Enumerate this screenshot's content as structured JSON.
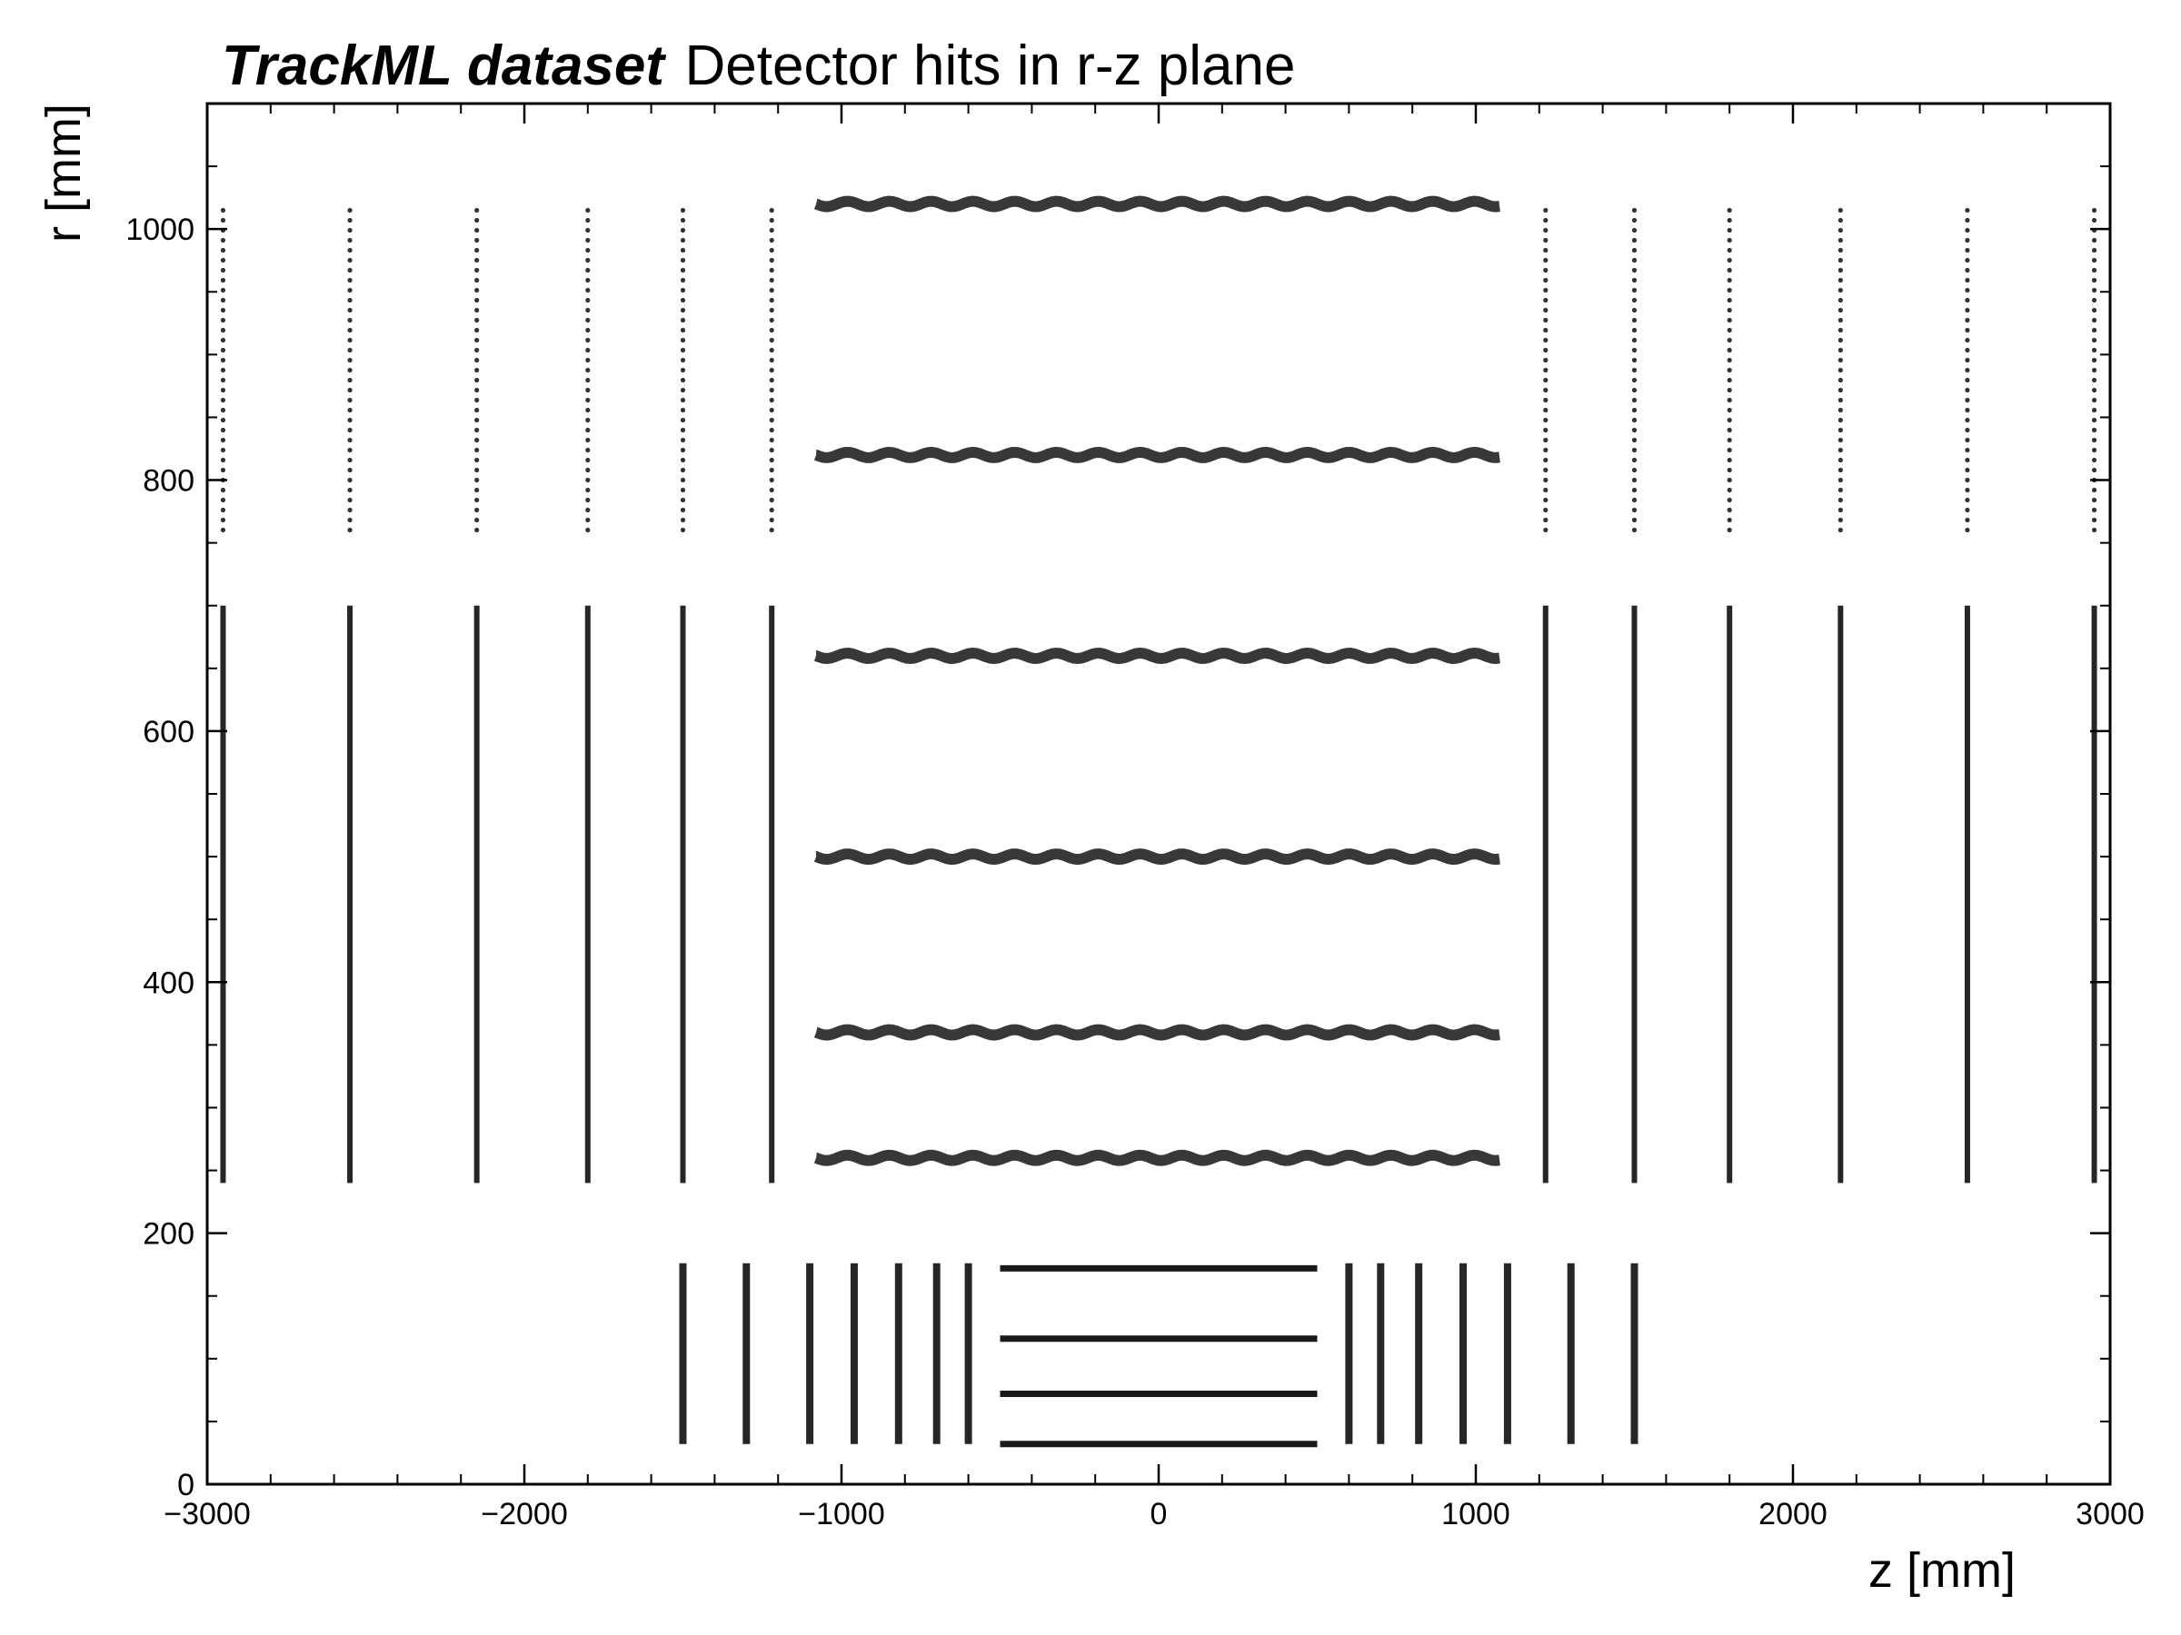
{
  "chart_data": {
    "type": "scatter",
    "title": "TrackML dataset",
    "subtitle": "Detector hits in r-z plane",
    "xlabel": "z [mm]",
    "ylabel": "r [mm]",
    "xlim": [
      -3000,
      3000
    ],
    "ylim": [
      0,
      1100
    ],
    "x_ticks": [
      -3000,
      -2000,
      -1000,
      0,
      1000,
      2000,
      3000
    ],
    "x_tick_labels": [
      "−3000",
      "−2000",
      "−1000",
      "0",
      "1000",
      "2000",
      "3000"
    ],
    "y_ticks": [
      0,
      200,
      400,
      600,
      800,
      1000
    ],
    "y_tick_labels": [
      "0",
      "200",
      "400",
      "600",
      "800",
      "1000"
    ],
    "grid": false,
    "marker_color": "#000000",
    "series": [
      {
        "kind": "barrel",
        "segments": [
          {
            "z": [
              -500,
              500
            ],
            "r": 32
          },
          {
            "z": [
              -500,
              500
            ],
            "r": 72
          },
          {
            "z": [
              -500,
              500
            ],
            "r": 116
          },
          {
            "z": [
              -500,
              500
            ],
            "r": 172
          },
          {
            "z": [
              -1080,
              1080
            ],
            "r": 260
          },
          {
            "z": [
              -1080,
              1080
            ],
            "r": 360
          },
          {
            "z": [
              -1080,
              1080
            ],
            "r": 500
          },
          {
            "z": [
              -1080,
              1080
            ],
            "r": 660
          },
          {
            "z": [
              -1080,
              1080
            ],
            "r": 820
          },
          {
            "z": [
              -1080,
              1080
            ],
            "r": 1020
          }
        ]
      },
      {
        "kind": "endcap",
        "segments": [
          {
            "z": -1500,
            "r": [
              32,
              176
            ]
          },
          {
            "z": -1300,
            "r": [
              32,
              176
            ]
          },
          {
            "z": -1100,
            "r": [
              32,
              176
            ]
          },
          {
            "z": -960,
            "r": [
              32,
              176
            ]
          },
          {
            "z": -820,
            "r": [
              32,
              176
            ]
          },
          {
            "z": -700,
            "r": [
              32,
              176
            ]
          },
          {
            "z": -600,
            "r": [
              32,
              176
            ]
          },
          {
            "z": 600,
            "r": [
              32,
              176
            ]
          },
          {
            "z": 700,
            "r": [
              32,
              176
            ]
          },
          {
            "z": 820,
            "r": [
              32,
              176
            ]
          },
          {
            "z": 960,
            "r": [
              32,
              176
            ]
          },
          {
            "z": 1100,
            "r": [
              32,
              176
            ]
          },
          {
            "z": 1300,
            "r": [
              32,
              176
            ]
          },
          {
            "z": 1500,
            "r": [
              32,
              176
            ]
          }
        ]
      },
      {
        "kind": "endcap",
        "segments": [
          {
            "z": -2950,
            "r": [
              240,
              700
            ]
          },
          {
            "z": -2550,
            "r": [
              240,
              700
            ]
          },
          {
            "z": -2150,
            "r": [
              240,
              700
            ]
          },
          {
            "z": -1800,
            "r": [
              240,
              700
            ]
          },
          {
            "z": -1500,
            "r": [
              240,
              700
            ]
          },
          {
            "z": -1220,
            "r": [
              240,
              700
            ]
          },
          {
            "z": 1220,
            "r": [
              240,
              700
            ]
          },
          {
            "z": 1500,
            "r": [
              240,
              700
            ]
          },
          {
            "z": 1800,
            "r": [
              240,
              700
            ]
          },
          {
            "z": 2150,
            "r": [
              240,
              700
            ]
          },
          {
            "z": 2550,
            "r": [
              240,
              700
            ]
          },
          {
            "z": 2950,
            "r": [
              240,
              700
            ]
          }
        ]
      },
      {
        "kind": "endcap",
        "segments": [
          {
            "z": -2950,
            "r": [
              755,
              1015
            ]
          },
          {
            "z": -2550,
            "r": [
              755,
              1015
            ]
          },
          {
            "z": -2150,
            "r": [
              755,
              1015
            ]
          },
          {
            "z": -1800,
            "r": [
              755,
              1015
            ]
          },
          {
            "z": -1500,
            "r": [
              755,
              1015
            ]
          },
          {
            "z": -1220,
            "r": [
              755,
              1015
            ]
          },
          {
            "z": 1220,
            "r": [
              755,
              1015
            ]
          },
          {
            "z": 1500,
            "r": [
              755,
              1015
            ]
          },
          {
            "z": 1800,
            "r": [
              755,
              1015
            ]
          },
          {
            "z": 2150,
            "r": [
              755,
              1015
            ]
          },
          {
            "z": 2550,
            "r": [
              755,
              1015
            ]
          },
          {
            "z": 2950,
            "r": [
              755,
              1015
            ]
          }
        ]
      }
    ]
  }
}
